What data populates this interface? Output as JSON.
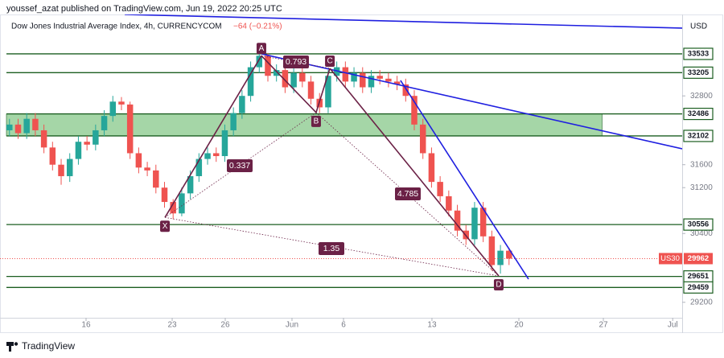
{
  "header": {
    "publisher": "youssef_azat published on TradingView.com, Jun 19, 2022 20:25 UTC"
  },
  "footer": {
    "brand": "TradingView"
  },
  "chart_data": {
    "type": "candlestick",
    "title": "Dow Jones Industrial Average Index, 4h, CURRENCYCOM",
    "change": "−64 (−0.21%)",
    "currency": "USD",
    "series_name": "US30",
    "last_price": 29962,
    "up_color": "#26a69a",
    "down_color": "#ef5350",
    "open": [
      32200,
      32300,
      32150,
      32400,
      32200,
      31900,
      31600,
      31400,
      31700,
      32000,
      31950,
      32200,
      32450,
      32700,
      32650,
      31800,
      31550,
      31500,
      31200,
      30950,
      30750,
      31100,
      31400,
      31700,
      31800,
      31750,
      32200,
      32500,
      32800,
      33300,
      33500,
      33150,
      33250,
      32950,
      33200,
      33050,
      32750,
      32600,
      33150,
      33300,
      33050,
      33200,
      32950,
      33150,
      33100,
      33050,
      33000,
      32800,
      32300,
      31800,
      31300,
      31050,
      30800,
      30450,
      30300,
      30850,
      30350,
      29850,
      30100
    ],
    "high": [
      32400,
      32400,
      32500,
      32500,
      32300,
      32000,
      31700,
      31800,
      32100,
      32100,
      32300,
      32550,
      32800,
      32780,
      32700,
      31900,
      31650,
      31600,
      31300,
      31000,
      31200,
      31500,
      31800,
      31900,
      31900,
      32300,
      32600,
      32900,
      33400,
      33650,
      33550,
      33350,
      33350,
      33300,
      33300,
      33150,
      32850,
      33250,
      33400,
      33400,
      33300,
      33300,
      33250,
      33250,
      33200,
      33150,
      33100,
      32900,
      32400,
      31900,
      31400,
      31150,
      30900,
      30550,
      30950,
      30950,
      30450,
      30200,
      30150
    ],
    "low": [
      32100,
      32050,
      32050,
      32100,
      31800,
      31500,
      31250,
      31300,
      31600,
      31850,
      31850,
      32100,
      32350,
      32550,
      31700,
      31450,
      31400,
      31100,
      30850,
      30650,
      30700,
      31000,
      31300,
      31600,
      31650,
      31650,
      32100,
      32400,
      32700,
      33200,
      33050,
      33050,
      32850,
      32850,
      32950,
      32650,
      32500,
      32500,
      33050,
      32950,
      32950,
      32850,
      32850,
      33000,
      32950,
      32900,
      32700,
      32200,
      31700,
      31200,
      30950,
      30700,
      30350,
      30200,
      30200,
      30250,
      29750,
      29700,
      29850
    ],
    "close": [
      32300,
      32150,
      32400,
      32200,
      31900,
      31600,
      31400,
      31700,
      32000,
      31950,
      32200,
      32450,
      32700,
      32650,
      31800,
      31550,
      31500,
      31200,
      30950,
      30750,
      31100,
      31400,
      31700,
      31800,
      31750,
      32200,
      32500,
      32800,
      33300,
      33500,
      33150,
      33250,
      32950,
      33200,
      33050,
      32750,
      32600,
      33150,
      33300,
      33050,
      33200,
      32950,
      33150,
      33100,
      33050,
      33000,
      32800,
      32300,
      31800,
      31300,
      31050,
      30800,
      30450,
      30300,
      30850,
      30350,
      29850,
      30100,
      29962
    ],
    "xlim": [
      -1.1,
      78.1
    ],
    "ylim": [
      28930,
      34220
    ],
    "xticks": [
      {
        "value": 8.89,
        "label": "16"
      },
      {
        "value": 18.89,
        "label": "23"
      },
      {
        "value": 25.05,
        "label": "26"
      },
      {
        "value": 32.8,
        "label": "Jun"
      },
      {
        "value": 38.78,
        "label": "6"
      },
      {
        "value": 49.05,
        "label": "13"
      },
      {
        "value": 59.14,
        "label": "20"
      },
      {
        "value": 68.95,
        "label": "27"
      },
      {
        "value": 77.0,
        "label": "Jul"
      }
    ],
    "yticks": [
      32800,
      31600,
      31200,
      30400,
      29200
    ],
    "levels": [
      33533,
      33205,
      32486,
      32102,
      30556,
      29651,
      29459
    ],
    "level_color": "#1b5e20",
    "zone": {
      "levels": [
        2,
        3
      ],
      "x_end": 68.8,
      "color": "#a5d6a7"
    },
    "trendline_color": "#1f1fe0",
    "trendlines": [
      {
        "x": [
          13.38,
          78.1
        ],
        "y": [
          34220,
          33982
        ]
      },
      {
        "x": [
          29.25,
          78.1
        ],
        "y": [
          33533,
          31877
        ]
      },
      {
        "x": [
          45.4,
          60.26
        ],
        "y": [
          33070,
          29604
        ]
      }
    ],
    "pattern_color": "#6b2146",
    "pattern": [
      {
        "label": "X",
        "x": 18.05,
        "y": 30680
      },
      {
        "label": "A",
        "x": 29.25,
        "y": 33500
      },
      {
        "label": "B",
        "x": 35.6,
        "y": 32510
      },
      {
        "label": "C",
        "x": 37.2,
        "y": 33280
      },
      {
        "label": "D",
        "x": 56.8,
        "y": 29660
      }
    ],
    "ratios": [
      "0.337",
      "0.793",
      "4.785",
      "1.35"
    ]
  }
}
